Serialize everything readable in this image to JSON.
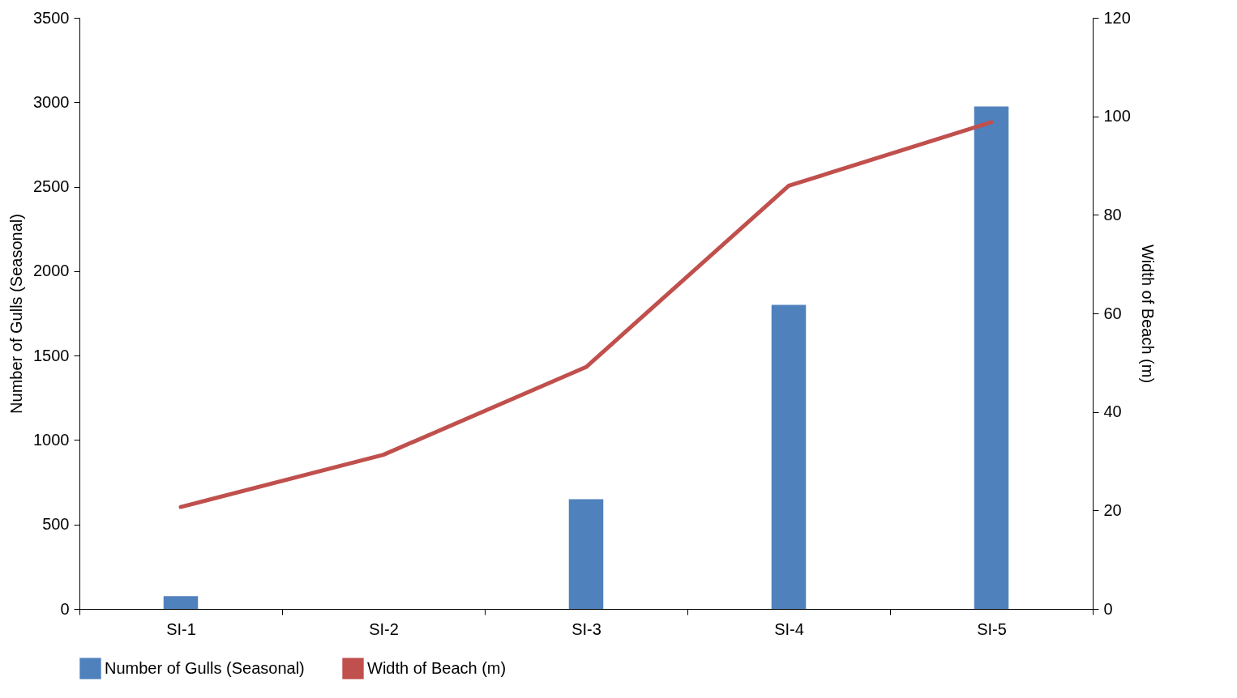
{
  "chart_data": {
    "type": "bar",
    "categories": [
      "SI-1",
      "SI-2",
      "SI-3",
      "SI-4",
      "SI-5"
    ],
    "ylabel": "Number of Gulls (Seasonal)",
    "y2label": "Width of Beach (m)",
    "ylim": [
      0,
      3500
    ],
    "yticks": [
      0,
      500,
      1000,
      1500,
      2000,
      2500,
      3000,
      3500
    ],
    "y2lim": [
      0,
      120
    ],
    "y2ticks": [
      0,
      20,
      40,
      60,
      80,
      100,
      120
    ],
    "legend": "bottom",
    "series": [
      {
        "name": "Number of Gulls (Seasonal)",
        "color": "#4f81bd",
        "values": [
          75,
          0,
          650,
          1800,
          2975
        ]
      },
      {
        "name": "Width of Beach (m)",
        "type": "line",
        "axis": "y2",
        "color": "#c0504d",
        "values": [
          20.7,
          31.3,
          49.1,
          85.9,
          98.8
        ]
      }
    ]
  }
}
